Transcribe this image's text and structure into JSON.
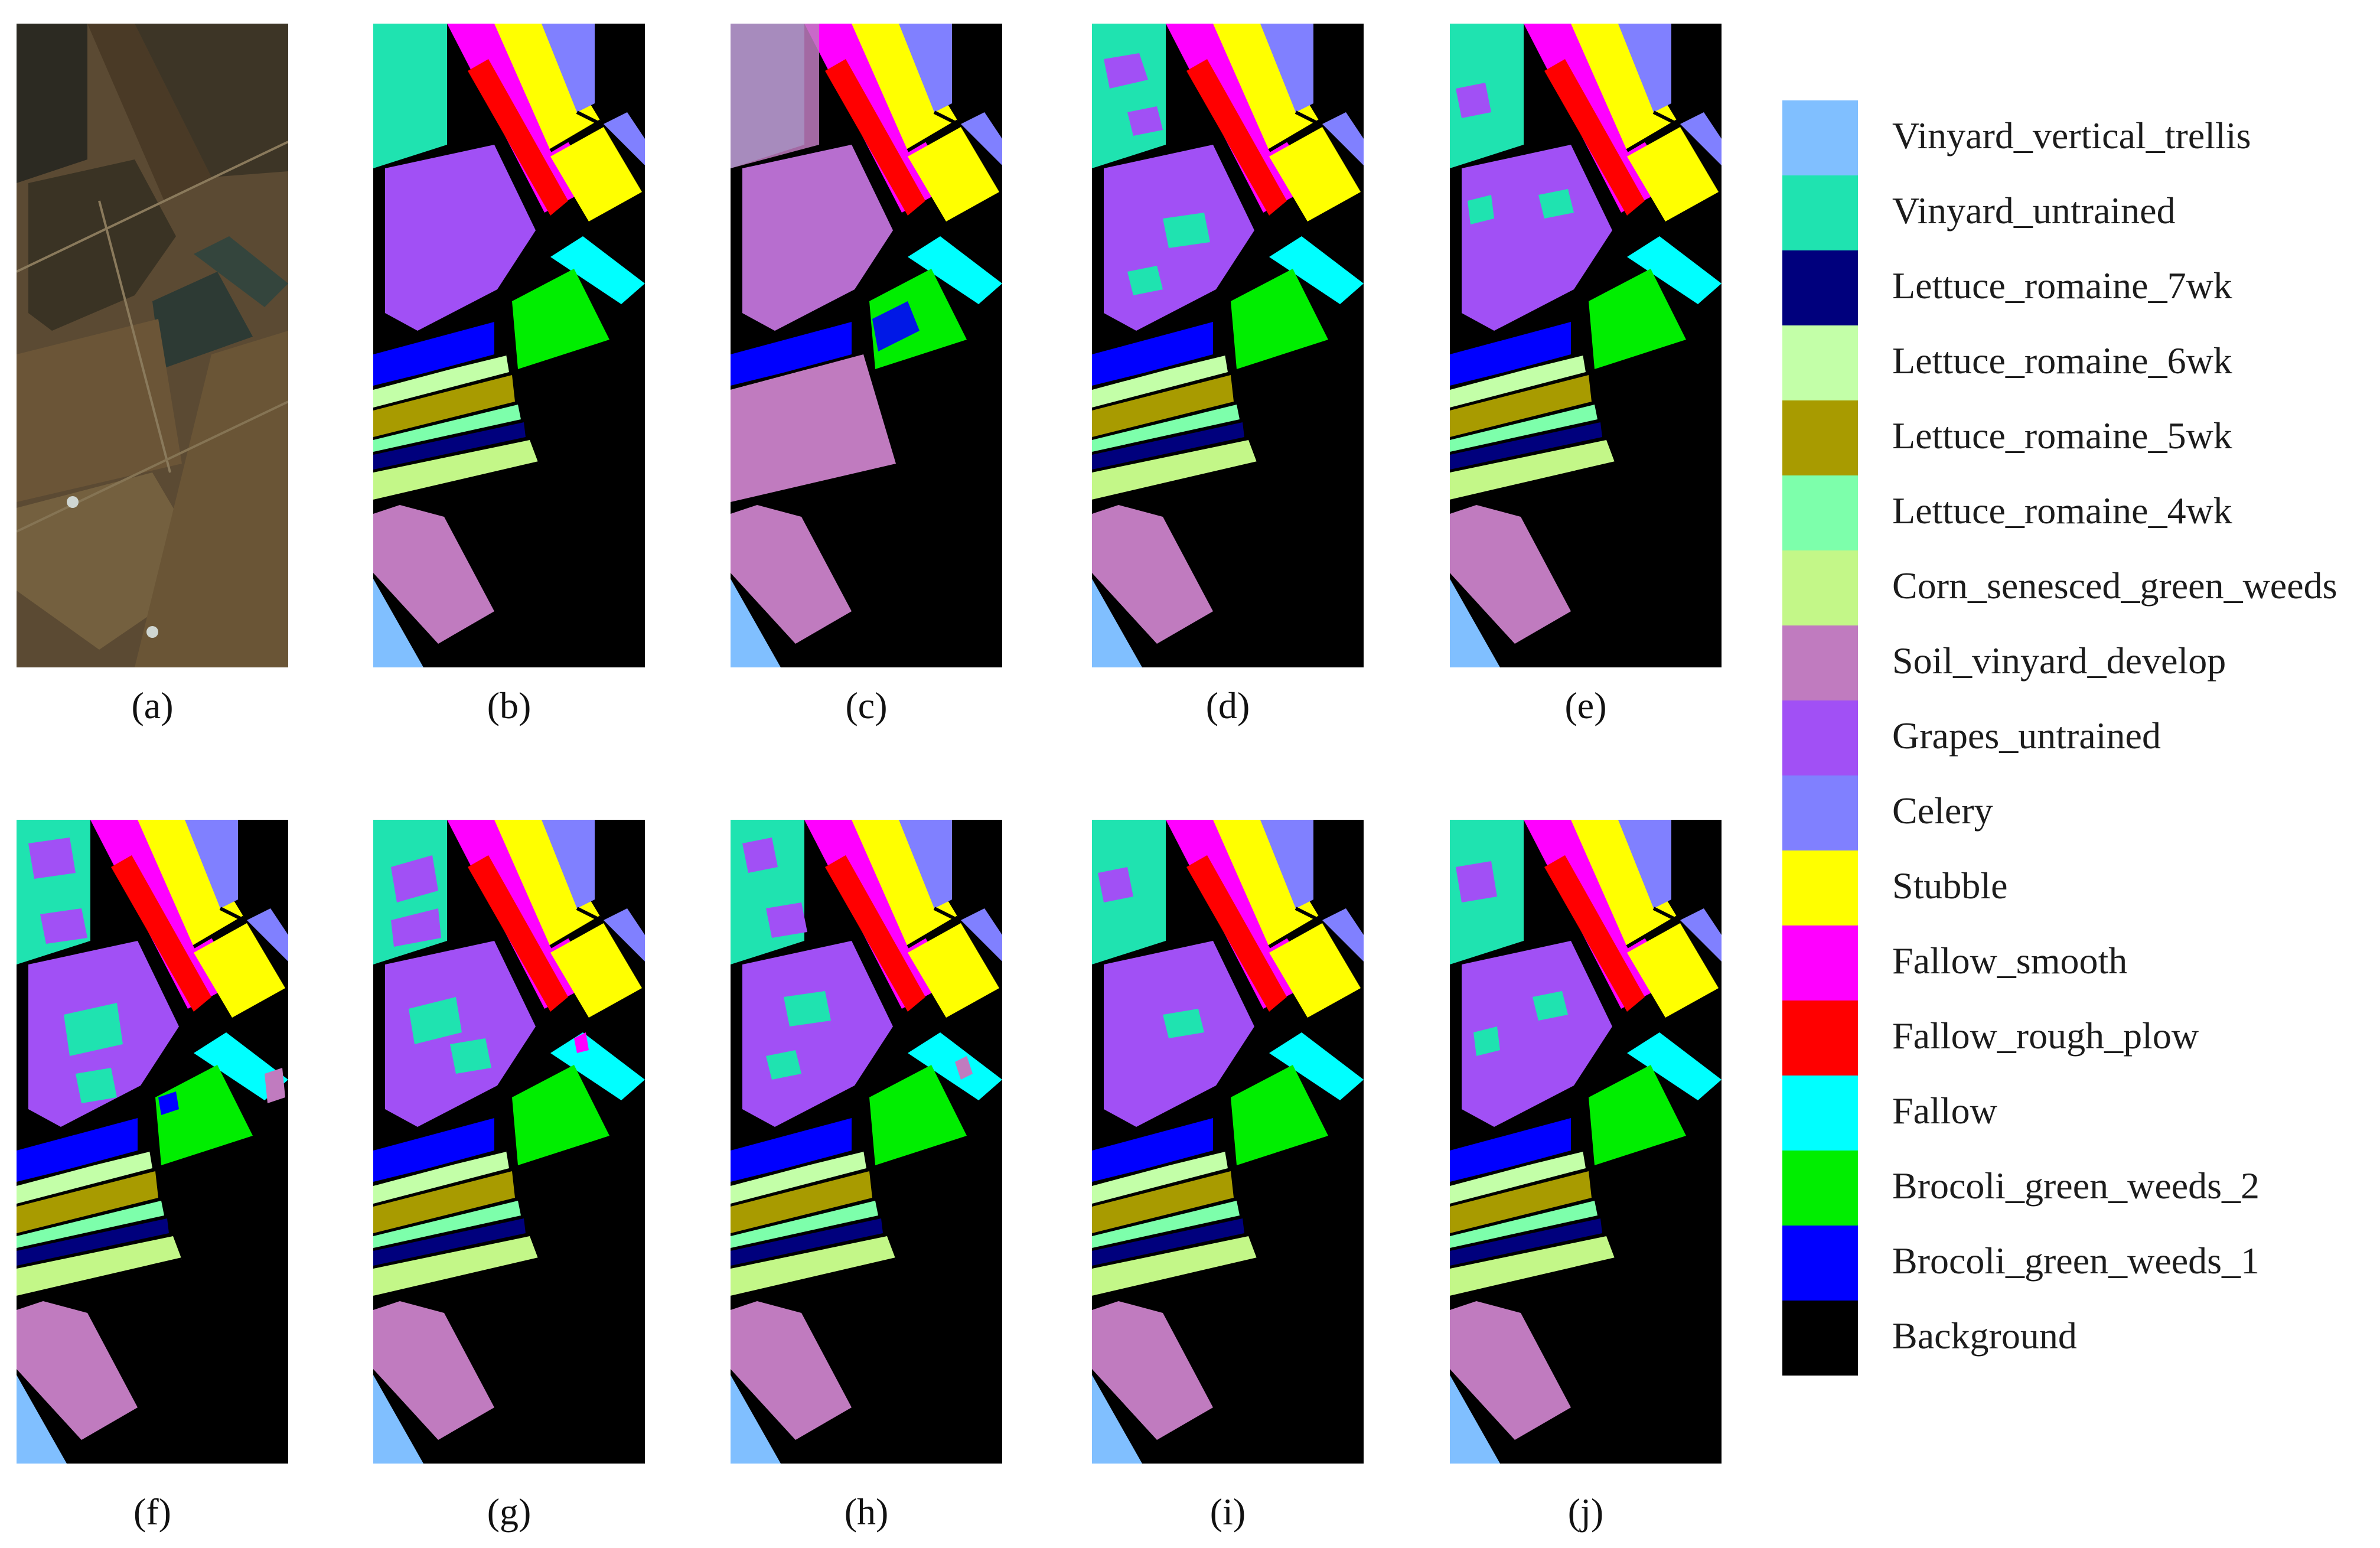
{
  "figure": {
    "panels": [
      {
        "label": "(a)",
        "kind": "true-color image"
      },
      {
        "label": "(b)",
        "kind": "ground truth map"
      },
      {
        "label": "(c)",
        "kind": "classification map"
      },
      {
        "label": "(d)",
        "kind": "classification map"
      },
      {
        "label": "(e)",
        "kind": "classification map"
      },
      {
        "label": "(f)",
        "kind": "classification map"
      },
      {
        "label": "(g)",
        "kind": "classification map"
      },
      {
        "label": "(h)",
        "kind": "classification map"
      },
      {
        "label": "(i)",
        "kind": "classification map"
      },
      {
        "label": "(j)",
        "kind": "classification map"
      }
    ]
  },
  "legend": {
    "items": [
      {
        "label": "Vinyard_vertical_trellis",
        "color": "#80bfff"
      },
      {
        "label": "Vinyard_untrained",
        "color": "#1fe3b0"
      },
      {
        "label": "Lettuce_romaine_7wk",
        "color": "#00007d"
      },
      {
        "label": "Lettuce_romaine_6wk",
        "color": "#c3ffa8"
      },
      {
        "label": "Lettuce_romaine_5wk",
        "color": "#a89b00"
      },
      {
        "label": "Lettuce_romaine_4wk",
        "color": "#7dffab"
      },
      {
        "label": "Corn_senesced_green_weeds",
        "color": "#c3f788"
      },
      {
        "label": "Soil_vinyard_develop",
        "color": "#c07bbf"
      },
      {
        "label": "Grapes_untrained",
        "color": "#a150f5"
      },
      {
        "label": "Celery",
        "color": "#8080ff"
      },
      {
        "label": "Stubble",
        "color": "#ffff00"
      },
      {
        "label": "Fallow_smooth",
        "color": "#ff00ff"
      },
      {
        "label": "Fallow_rough_plow",
        "color": "#ff0000"
      },
      {
        "label": "Fallow",
        "color": "#00ffff"
      },
      {
        "label": "Brocoli_green_weeds_2",
        "color": "#00ee00"
      },
      {
        "label": "Brocoli_green_weeds_1",
        "color": "#0000ff"
      },
      {
        "label": "Background",
        "color": "#000000"
      }
    ]
  }
}
